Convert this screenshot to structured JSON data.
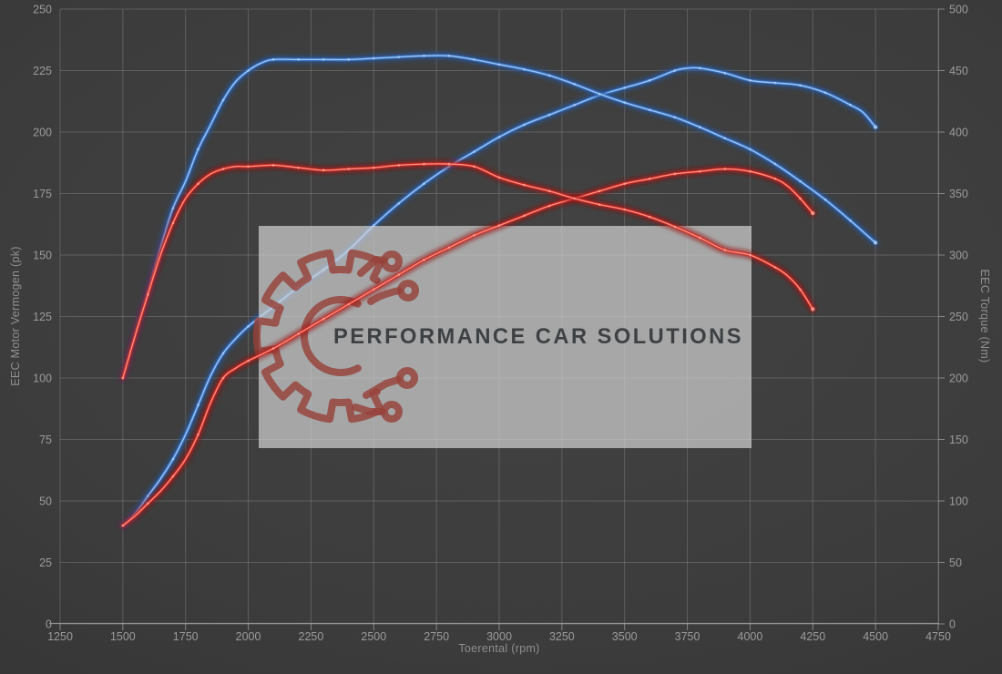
{
  "watermark": {
    "brand": "PERFORMANCE CAR SOLUTIONS"
  },
  "chart_data": {
    "type": "line",
    "xlabel": "Toerental (rpm)",
    "ylabel_left": "EEC Motor Vermogen (pk)",
    "ylabel_right": "EEC Torque (Nm)",
    "xlim": [
      1250,
      4750
    ],
    "ylim_left": [
      0,
      250
    ],
    "ylim_right": [
      0,
      500
    ],
    "x_ticks": [
      1250,
      1500,
      1750,
      2000,
      2250,
      2500,
      2750,
      3000,
      3250,
      3500,
      3750,
      4000,
      4250,
      4500,
      4750
    ],
    "y_ticks_left": [
      0,
      25,
      50,
      75,
      100,
      125,
      150,
      175,
      200,
      225,
      250
    ],
    "y_ticks_right": [
      0,
      50,
      100,
      150,
      200,
      250,
      300,
      350,
      400,
      450,
      500
    ],
    "grid": true,
    "legend": false,
    "colors": {
      "blue": "#3f7ed6",
      "blue_glow": "#24549e",
      "blue_core": "#a9cdf6",
      "red": "#d92b22",
      "red_glow": "#991512",
      "red_core": "#ff9d90",
      "grid": "#888888",
      "axis": "#a0a0a0",
      "tick_label": "#9b9b9b",
      "watermark_bg": "#cfcfcf",
      "watermark_text": "#35383b",
      "logo": "#96423a"
    },
    "series": [
      {
        "id": "power-blue",
        "axis": "left",
        "unit": "pk",
        "color_key": "blue",
        "points": [
          [
            1500,
            40
          ],
          [
            1550,
            45
          ],
          [
            1600,
            52
          ],
          [
            1650,
            59
          ],
          [
            1700,
            67
          ],
          [
            1750,
            77
          ],
          [
            1800,
            89
          ],
          [
            1850,
            101
          ],
          [
            1900,
            110
          ],
          [
            1950,
            116
          ],
          [
            2000,
            121
          ],
          [
            2100,
            129
          ],
          [
            2200,
            137
          ],
          [
            2300,
            144
          ],
          [
            2400,
            152
          ],
          [
            2500,
            162
          ],
          [
            2600,
            171
          ],
          [
            2700,
            179
          ],
          [
            2800,
            186
          ],
          [
            2900,
            192
          ],
          [
            3000,
            198
          ],
          [
            3100,
            203
          ],
          [
            3200,
            207
          ],
          [
            3300,
            211
          ],
          [
            3400,
            215
          ],
          [
            3500,
            218
          ],
          [
            3600,
            221
          ],
          [
            3700,
            225
          ],
          [
            3750,
            226
          ],
          [
            3800,
            226
          ],
          [
            3900,
            224
          ],
          [
            4000,
            221
          ],
          [
            4100,
            220
          ],
          [
            4200,
            219
          ],
          [
            4300,
            216
          ],
          [
            4400,
            211
          ],
          [
            4450,
            208
          ],
          [
            4500,
            202
          ]
        ]
      },
      {
        "id": "torque-blue",
        "axis": "right",
        "unit": "Nm",
        "color_key": "blue",
        "points": [
          [
            1500,
            200
          ],
          [
            1550,
            236
          ],
          [
            1600,
            270
          ],
          [
            1650,
            306
          ],
          [
            1700,
            338
          ],
          [
            1750,
            360
          ],
          [
            1800,
            386
          ],
          [
            1850,
            406
          ],
          [
            1900,
            426
          ],
          [
            1950,
            441
          ],
          [
            2000,
            450
          ],
          [
            2050,
            456
          ],
          [
            2100,
            459
          ],
          [
            2200,
            459
          ],
          [
            2300,
            459
          ],
          [
            2400,
            459
          ],
          [
            2500,
            460
          ],
          [
            2600,
            461
          ],
          [
            2700,
            462
          ],
          [
            2800,
            462
          ],
          [
            2900,
            459
          ],
          [
            3000,
            455
          ],
          [
            3100,
            451
          ],
          [
            3200,
            446
          ],
          [
            3300,
            439
          ],
          [
            3400,
            431
          ],
          [
            3500,
            424
          ],
          [
            3600,
            418
          ],
          [
            3700,
            412
          ],
          [
            3800,
            404
          ],
          [
            3900,
            395
          ],
          [
            4000,
            386
          ],
          [
            4100,
            374
          ],
          [
            4200,
            360
          ],
          [
            4300,
            345
          ],
          [
            4400,
            328
          ],
          [
            4450,
            319
          ],
          [
            4500,
            310
          ]
        ]
      },
      {
        "id": "power-red",
        "axis": "left",
        "unit": "pk",
        "color_key": "red",
        "points": [
          [
            1500,
            40
          ],
          [
            1550,
            44
          ],
          [
            1600,
            49
          ],
          [
            1650,
            54
          ],
          [
            1700,
            60
          ],
          [
            1750,
            67
          ],
          [
            1800,
            77
          ],
          [
            1850,
            90
          ],
          [
            1900,
            100
          ],
          [
            1950,
            104
          ],
          [
            2000,
            107
          ],
          [
            2100,
            112
          ],
          [
            2200,
            118
          ],
          [
            2300,
            124
          ],
          [
            2400,
            130
          ],
          [
            2500,
            136
          ],
          [
            2600,
            142
          ],
          [
            2700,
            148
          ],
          [
            2800,
            153
          ],
          [
            2900,
            158
          ],
          [
            3000,
            162
          ],
          [
            3100,
            166
          ],
          [
            3200,
            170
          ],
          [
            3300,
            173
          ],
          [
            3400,
            176
          ],
          [
            3500,
            179
          ],
          [
            3600,
            181
          ],
          [
            3700,
            183
          ],
          [
            3800,
            184
          ],
          [
            3900,
            185
          ],
          [
            4000,
            184
          ],
          [
            4100,
            181
          ],
          [
            4150,
            178
          ],
          [
            4200,
            173
          ],
          [
            4250,
            167
          ]
        ]
      },
      {
        "id": "torque-red",
        "axis": "right",
        "unit": "Nm",
        "color_key": "red",
        "points": [
          [
            1500,
            200
          ],
          [
            1550,
            235
          ],
          [
            1600,
            268
          ],
          [
            1650,
            300
          ],
          [
            1700,
            326
          ],
          [
            1750,
            346
          ],
          [
            1800,
            358
          ],
          [
            1850,
            366
          ],
          [
            1900,
            370
          ],
          [
            1950,
            372
          ],
          [
            2000,
            372
          ],
          [
            2100,
            373
          ],
          [
            2200,
            371
          ],
          [
            2300,
            369
          ],
          [
            2400,
            370
          ],
          [
            2500,
            371
          ],
          [
            2600,
            373
          ],
          [
            2700,
            374
          ],
          [
            2800,
            374
          ],
          [
            2900,
            372
          ],
          [
            3000,
            363
          ],
          [
            3100,
            357
          ],
          [
            3200,
            352
          ],
          [
            3300,
            346
          ],
          [
            3400,
            341
          ],
          [
            3500,
            337
          ],
          [
            3600,
            331
          ],
          [
            3700,
            323
          ],
          [
            3800,
            314
          ],
          [
            3900,
            304
          ],
          [
            4000,
            300
          ],
          [
            4100,
            290
          ],
          [
            4150,
            283
          ],
          [
            4200,
            272
          ],
          [
            4250,
            256
          ]
        ]
      }
    ]
  }
}
